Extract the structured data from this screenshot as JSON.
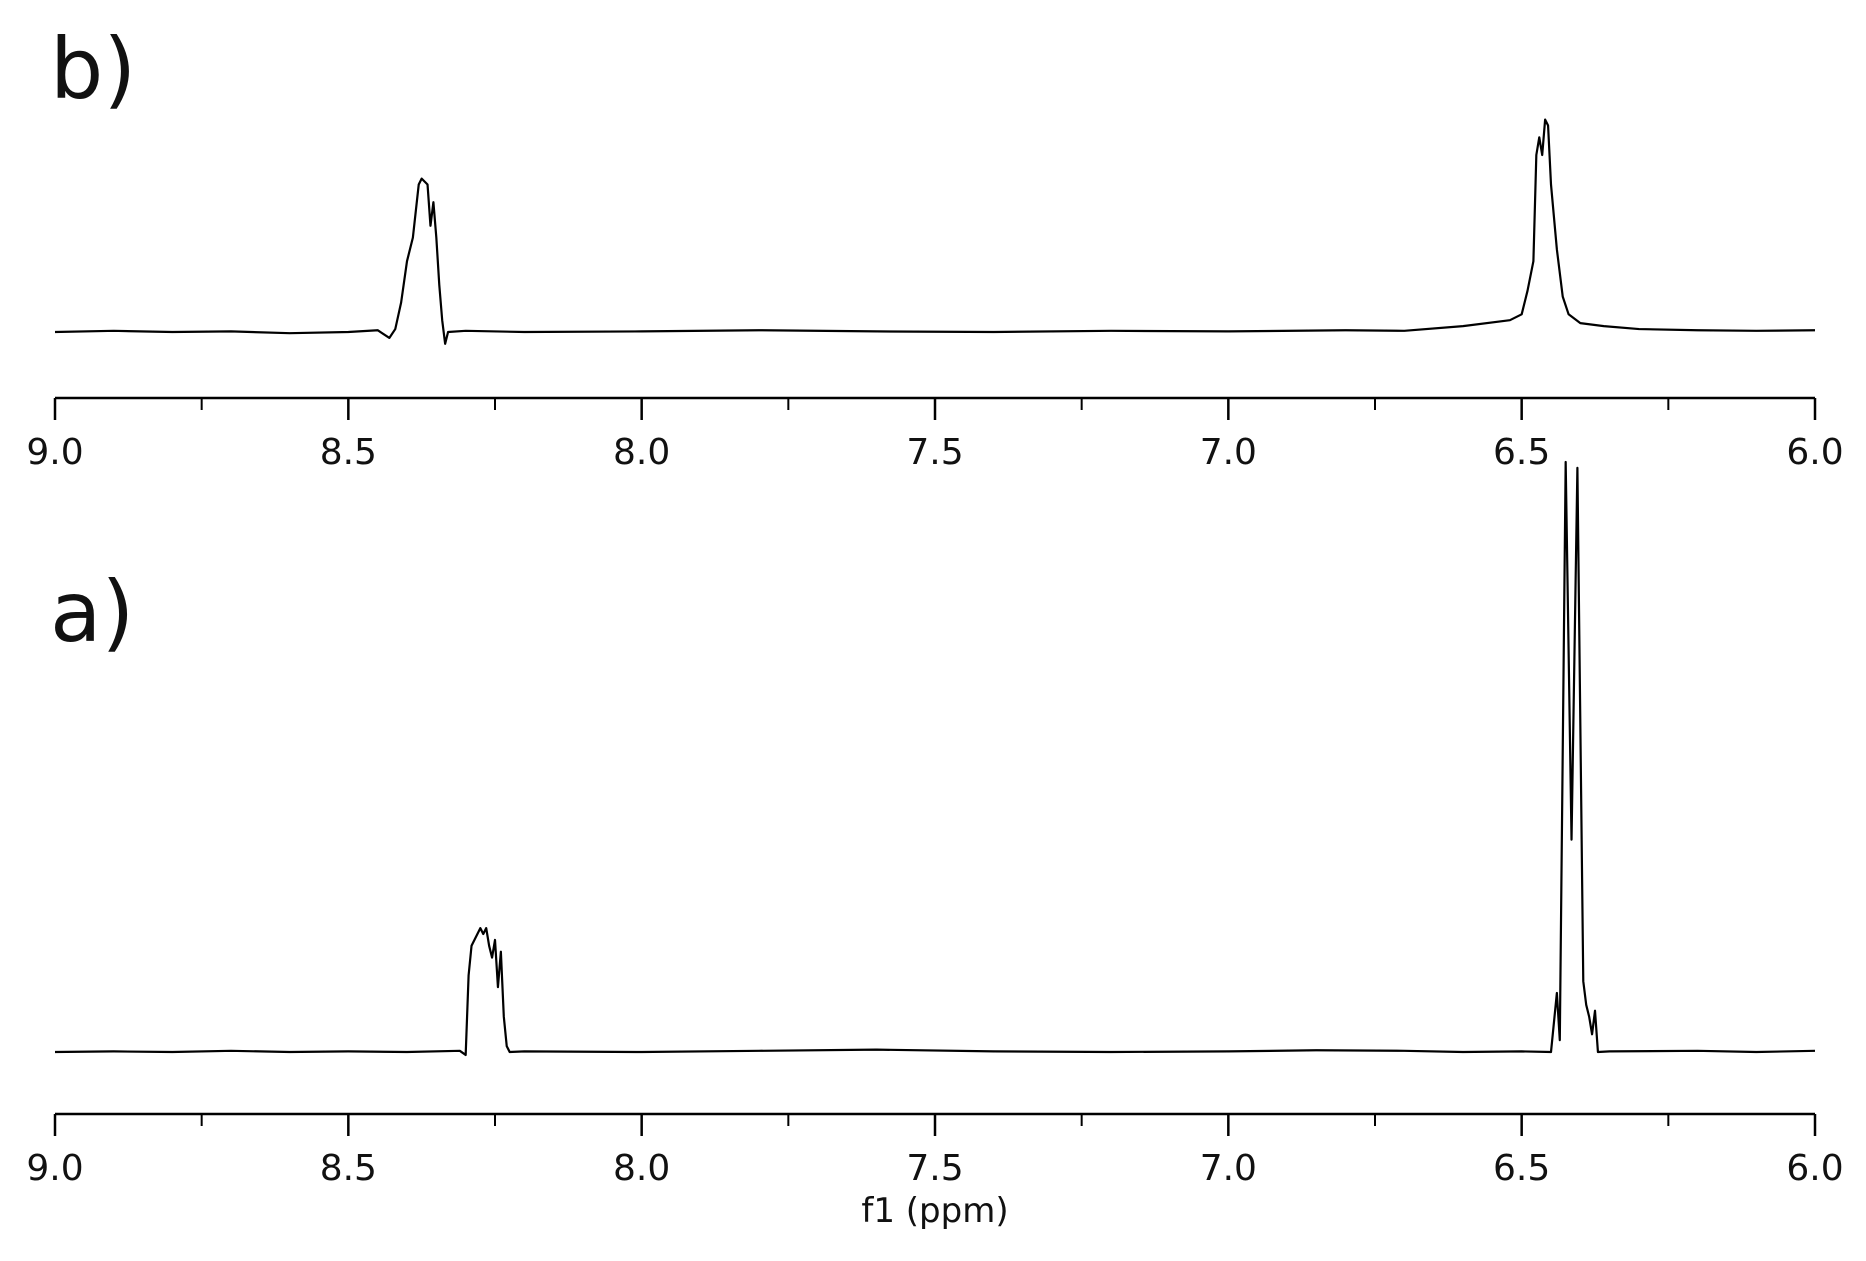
{
  "chart_data": [
    {
      "type": "line",
      "panel_label": "b)",
      "color": "#000000",
      "xlim": [
        9.0,
        6.0
      ],
      "ylim": [
        -5,
        45
      ],
      "xticks": [
        {
          "value": 9.0,
          "label": "9.0"
        },
        {
          "value": 8.5,
          "label": "8.5"
        },
        {
          "value": 8.0,
          "label": "8.0"
        },
        {
          "value": 7.5,
          "label": "7.5"
        },
        {
          "value": 7.0,
          "label": "7.0"
        },
        {
          "value": 6.5,
          "label": "6.5"
        },
        {
          "value": 6.0,
          "label": "6.0"
        }
      ],
      "xminorticks": [
        8.75,
        8.25,
        7.75,
        7.25,
        6.75,
        6.25
      ],
      "x": [
        9.0,
        8.9,
        8.8,
        8.7,
        8.6,
        8.5,
        8.45,
        8.43,
        8.42,
        8.41,
        8.4,
        8.39,
        8.38,
        8.375,
        8.365,
        8.36,
        8.355,
        8.35,
        8.345,
        8.34,
        8.335,
        8.33,
        8.3,
        8.2,
        8.0,
        7.8,
        7.6,
        7.4,
        7.2,
        7.0,
        6.8,
        6.7,
        6.6,
        6.52,
        6.5,
        6.49,
        6.48,
        6.475,
        6.47,
        6.465,
        6.46,
        6.455,
        6.45,
        6.44,
        6.43,
        6.42,
        6.4,
        6.36,
        6.3,
        6.2,
        6.1,
        6.0
      ],
      "values": [
        0,
        0.2,
        0,
        0.1,
        -0.2,
        0,
        0.3,
        -1,
        0.5,
        5,
        12,
        16,
        25,
        26,
        25,
        18,
        22,
        16,
        8,
        2,
        -2,
        0,
        0.2,
        0,
        0.1,
        0.3,
        0.1,
        0,
        0.2,
        0.1,
        0.3,
        0.2,
        1,
        2,
        3,
        7,
        12,
        30,
        33,
        30,
        36,
        35,
        25,
        14,
        6,
        3,
        1.5,
        1,
        0.5,
        0.3,
        0.2,
        0.3
      ]
    },
    {
      "type": "line",
      "panel_label": "a)",
      "color": "#000000",
      "xlabel": "f1 (ppm)",
      "xlim": [
        9.0,
        6.0
      ],
      "ylim": [
        -5,
        100
      ],
      "xticks": [
        {
          "value": 9.0,
          "label": "9.0"
        },
        {
          "value": 8.5,
          "label": "8.5"
        },
        {
          "value": 8.0,
          "label": "8.0"
        },
        {
          "value": 7.5,
          "label": "7.5"
        },
        {
          "value": 7.0,
          "label": "7.0"
        },
        {
          "value": 6.5,
          "label": "6.5"
        },
        {
          "value": 6.0,
          "label": "6.0"
        }
      ],
      "xminorticks": [
        8.75,
        8.25,
        7.75,
        7.25,
        6.75,
        6.25
      ],
      "x": [
        9.0,
        8.9,
        8.8,
        8.7,
        8.6,
        8.5,
        8.4,
        8.31,
        8.3,
        8.295,
        8.29,
        8.28,
        8.275,
        8.27,
        8.265,
        8.26,
        8.255,
        8.25,
        8.245,
        8.24,
        8.235,
        8.23,
        8.225,
        8.2,
        8.0,
        7.8,
        7.6,
        7.4,
        7.2,
        7.0,
        6.85,
        6.7,
        6.6,
        6.5,
        6.45,
        6.44,
        6.435,
        6.425,
        6.415,
        6.405,
        6.395,
        6.39,
        6.385,
        6.38,
        6.375,
        6.37,
        6.35,
        6.2,
        6.1,
        6.0
      ],
      "values": [
        0,
        0.1,
        0,
        0.2,
        0,
        0.1,
        0,
        0.2,
        -0.5,
        13,
        18,
        20,
        21,
        20,
        21,
        18,
        16,
        19,
        11,
        17,
        6,
        1,
        0,
        0.1,
        0,
        0.2,
        0.4,
        0.1,
        0,
        0.1,
        0.3,
        0.2,
        0,
        0.1,
        0,
        10,
        2,
        100,
        36,
        99,
        12,
        8,
        6,
        3,
        7,
        0,
        0.1,
        0.2,
        0,
        0.2
      ]
    }
  ]
}
